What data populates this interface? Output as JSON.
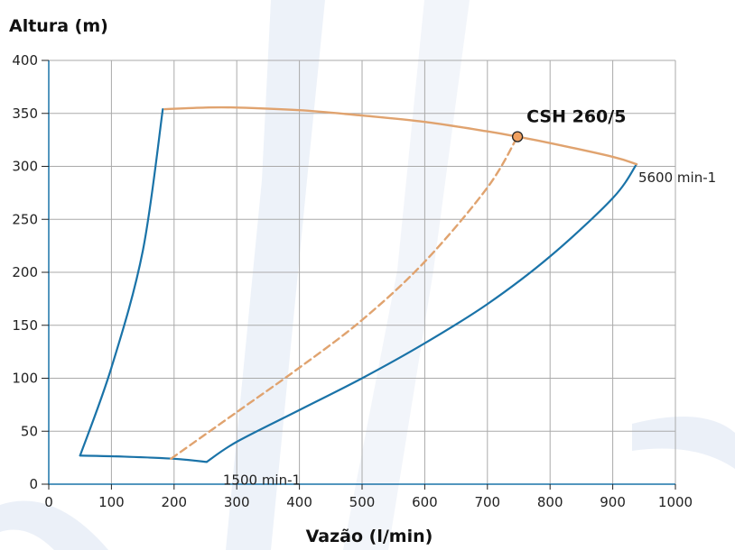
{
  "chart_data": {
    "type": "line",
    "xlabel": "Vazão (l/min)",
    "ylabel": "Altura (m)",
    "xlim": [
      0,
      1000
    ],
    "ylim": [
      0,
      400
    ],
    "x_ticks": [
      0,
      100,
      200,
      300,
      400,
      500,
      600,
      700,
      800,
      900,
      1000
    ],
    "y_ticks": [
      0,
      50,
      100,
      150,
      200,
      250,
      300,
      350,
      400
    ],
    "grid": true,
    "colors": {
      "envelope": "#1a73a8",
      "curve": "#e0a36f",
      "grid": "#aaaaaa",
      "watermark": "#e6ecf6"
    },
    "series": [
      {
        "style": "solid-blue",
        "x": [
          50,
          100,
          150,
          182
        ],
        "y": [
          27,
          110,
          220,
          354
        ]
      },
      {
        "style": "solid-blue",
        "x": [
          50,
          120,
          200,
          252
        ],
        "y": [
          27,
          26,
          24,
          21
        ]
      },
      {
        "style": "solid-blue",
        "x": [
          252,
          300,
          400,
          500,
          600,
          700,
          800,
          900,
          938
        ],
        "y": [
          21,
          40,
          70,
          100,
          133,
          170,
          215,
          270,
          302
        ]
      },
      {
        "style": "solid-orange",
        "x": [
          185,
          250,
          300,
          400,
          500,
          600,
          700,
          748,
          800,
          900,
          938
        ],
        "y": [
          354,
          355.5,
          355.5,
          353,
          348,
          342,
          333,
          328,
          322,
          309,
          302
        ]
      },
      {
        "style": "dashed-orange",
        "x": [
          195,
          300,
          400,
          500,
          600,
          700,
          748
        ],
        "y": [
          24,
          68,
          110,
          155,
          210,
          280,
          328
        ]
      }
    ],
    "operating_point": {
      "x": 748,
      "y": 328
    },
    "annotations": [
      {
        "text": "CSH 260/5",
        "x": 748,
        "y": 328,
        "style": "bold"
      },
      {
        "text": "5600 min-1",
        "x": 938,
        "y": 302,
        "style": "normal"
      },
      {
        "text": "1500 min-1",
        "x": 252,
        "y": 21,
        "style": "normal"
      }
    ]
  }
}
